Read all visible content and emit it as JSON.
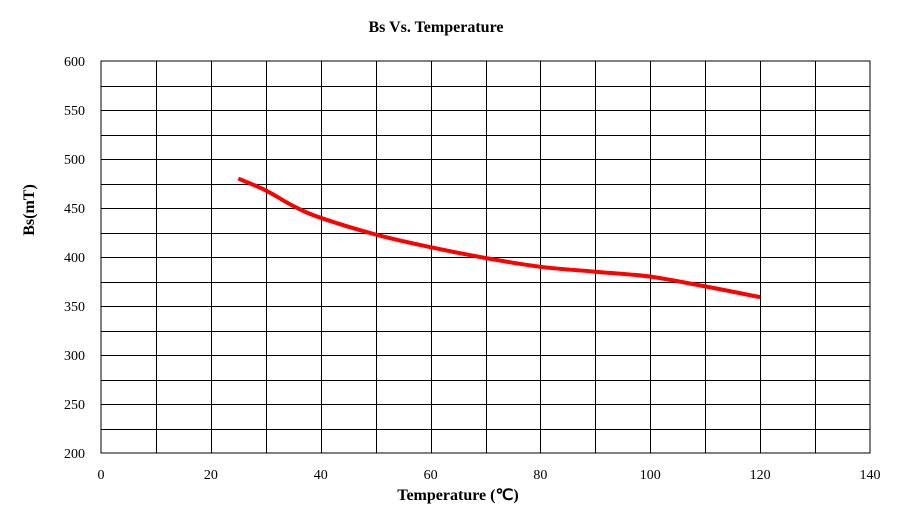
{
  "chart_data": {
    "type": "line",
    "title": "Bs Vs. Temperature",
    "xlabel": "Temperature (℃)",
    "ylabel": "Bs(mT)",
    "xlim": [
      0,
      140
    ],
    "ylim": [
      200,
      600
    ],
    "x_ticks": [
      0,
      20,
      40,
      60,
      80,
      100,
      120,
      140
    ],
    "y_ticks": [
      200,
      250,
      300,
      350,
      400,
      450,
      500,
      550,
      600
    ],
    "x_grid_step": 10,
    "y_grid_step": 25,
    "grid": true,
    "legend": "none",
    "series": [
      {
        "color": "#ff0000",
        "x": [
          25,
          30,
          35,
          40,
          50,
          60,
          70,
          80,
          90,
          100,
          110,
          120
        ],
        "y": [
          480,
          468,
          452,
          440,
          423,
          410,
          399,
          390,
          385,
          380,
          370,
          359
        ]
      }
    ]
  }
}
